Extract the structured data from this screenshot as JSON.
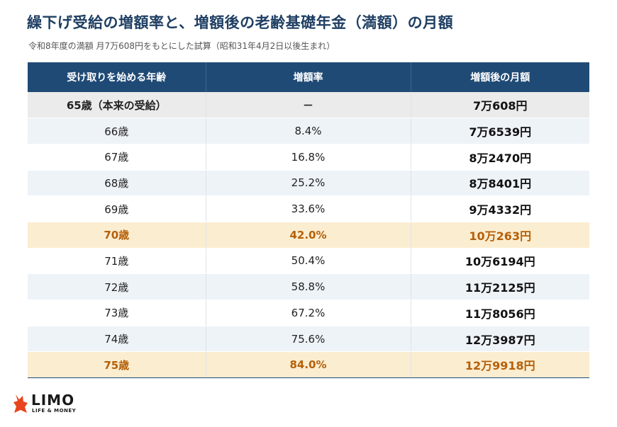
{
  "title": "繰下げ受給の増額率と、増額後の老齢基礎年金（満額）の月額",
  "subtitle": "令和8年度の満額 月7万608円をもとにした試算（昭和31年4月2日以後生まれ）",
  "table": {
    "headers": [
      "受け取りを始める年齢",
      "増額率",
      "増額後の月額"
    ],
    "rows": [
      {
        "age": "65歳（本来の受給）",
        "rate": "－",
        "amount": "7万608円",
        "style": "base"
      },
      {
        "age": "66歳",
        "rate": "8.4%",
        "amount": "7万6539円",
        "style": "odd"
      },
      {
        "age": "67歳",
        "rate": "16.8%",
        "amount": "8万2470円",
        "style": "even"
      },
      {
        "age": "68歳",
        "rate": "25.2%",
        "amount": "8万8401円",
        "style": "odd"
      },
      {
        "age": "69歳",
        "rate": "33.6%",
        "amount": "9万4332円",
        "style": "even"
      },
      {
        "age": "70歳",
        "rate": "42.0%",
        "amount": "10万263円",
        "style": "hl"
      },
      {
        "age": "71歳",
        "rate": "50.4%",
        "amount": "10万6194円",
        "style": "even"
      },
      {
        "age": "72歳",
        "rate": "58.8%",
        "amount": "11万2125円",
        "style": "odd"
      },
      {
        "age": "73歳",
        "rate": "67.2%",
        "amount": "11万8056円",
        "style": "even"
      },
      {
        "age": "74歳",
        "rate": "75.6%",
        "amount": "12万3987円",
        "style": "odd"
      },
      {
        "age": "75歳",
        "rate": "84.0%",
        "amount": "12万9918円",
        "style": "hl"
      }
    ]
  },
  "logo": {
    "name": "LIMO",
    "tagline": "LIFE & MONEY",
    "icon": "fox-icon",
    "color": "#e8451e"
  },
  "colors": {
    "header_bg": "#1f4a75",
    "title": "#1f3f63",
    "highlight_bg": "#fbedd0",
    "highlight_text": "#b5600a"
  }
}
